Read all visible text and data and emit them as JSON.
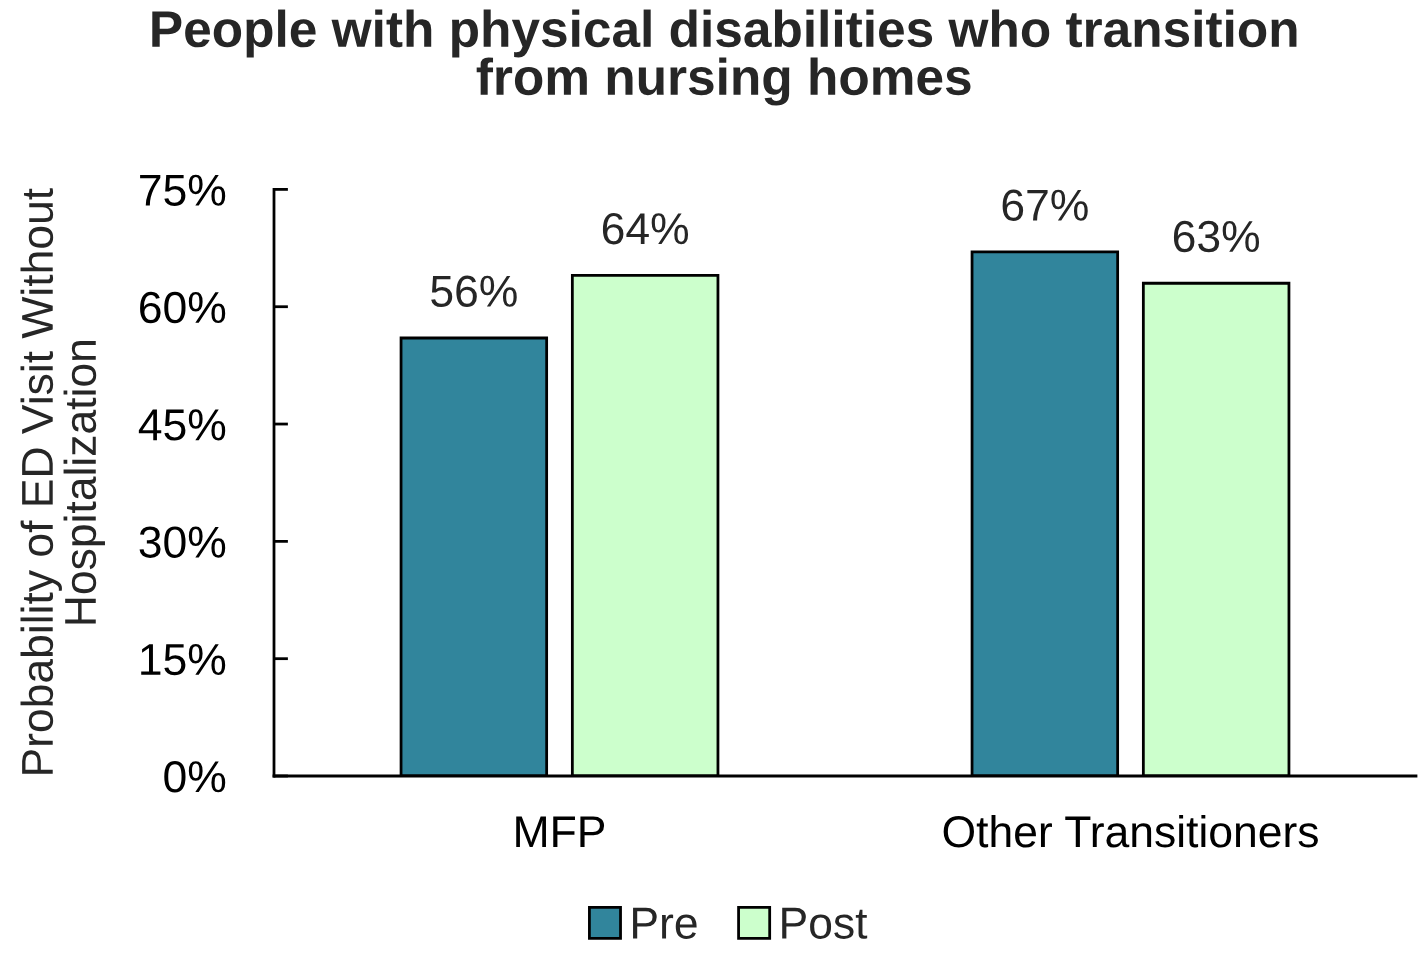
{
  "chart_data": {
    "type": "bar",
    "title": "People with physical disabilities who transition\nfrom nursing homes",
    "ylabel": "Probability of ED Visit Without\nHospitalization",
    "categories": [
      "MFP",
      "Other Transitioners"
    ],
    "series": [
      {
        "name": "Pre",
        "color": "#31859c",
        "values": [
          56,
          67
        ],
        "value_labels": [
          "56%",
          "67%"
        ]
      },
      {
        "name": "Post",
        "color": "#ccffcc",
        "values": [
          64,
          63
        ],
        "value_labels": [
          "64%",
          "63%"
        ]
      }
    ],
    "ylim": [
      0,
      75
    ],
    "yticks": [
      {
        "value": 0,
        "label": "0%"
      },
      {
        "value": 15,
        "label": "15%"
      },
      {
        "value": 30,
        "label": "30%"
      },
      {
        "value": 45,
        "label": "45%"
      },
      {
        "value": 60,
        "label": "60%"
      },
      {
        "value": 75,
        "label": "75%"
      }
    ],
    "legend": "bottom"
  }
}
